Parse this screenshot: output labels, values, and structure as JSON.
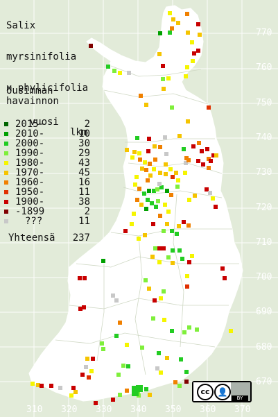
{
  "title_lines": [
    "Salix",
    "myrsinifolia",
    "x phylicifolia"
  ],
  "legend": {
    "heading_lines": [
      "Uusimman",
      "havainnon"
    ],
    "col_year": "vuosi",
    "col_count": "lkm",
    "rows": [
      {
        "label": "2015-",
        "count": "2",
        "color": "#006400"
      },
      {
        "label": "2010-",
        "count": "10",
        "color": "#00a000"
      },
      {
        "label": "2000-",
        "count": "30",
        "color": "#22cc22"
      },
      {
        "label": "1990-",
        "count": "29",
        "color": "#7fef3b"
      },
      {
        "label": "1980-",
        "count": "43",
        "color": "#f5f500"
      },
      {
        "label": "1970-",
        "count": "45",
        "color": "#f5c400"
      },
      {
        "label": "1960-",
        "count": "16",
        "color": "#f08000"
      },
      {
        "label": "1950-",
        "count": "11",
        "color": "#e03000"
      },
      {
        "label": "1900-",
        "count": "38",
        "color": "#c80000"
      },
      {
        "label": "-1899",
        "count": "2",
        "color": "#800000"
      },
      {
        "label": "???",
        "count": "11",
        "color": "#c8c8c8"
      }
    ],
    "total_label": "Yhteensä",
    "total_count": "237"
  },
  "y_axis_labels": [
    "770",
    "760",
    "750",
    "740",
    "730",
    "720",
    "710",
    "700",
    "690",
    "680",
    "670"
  ],
  "x_axis_labels": [
    "310",
    "320",
    "330",
    "340",
    "350",
    "360",
    "370"
  ],
  "license": {
    "icon_cc": "cc-icon",
    "icon_by": "person-icon",
    "text": "BY"
  }
}
